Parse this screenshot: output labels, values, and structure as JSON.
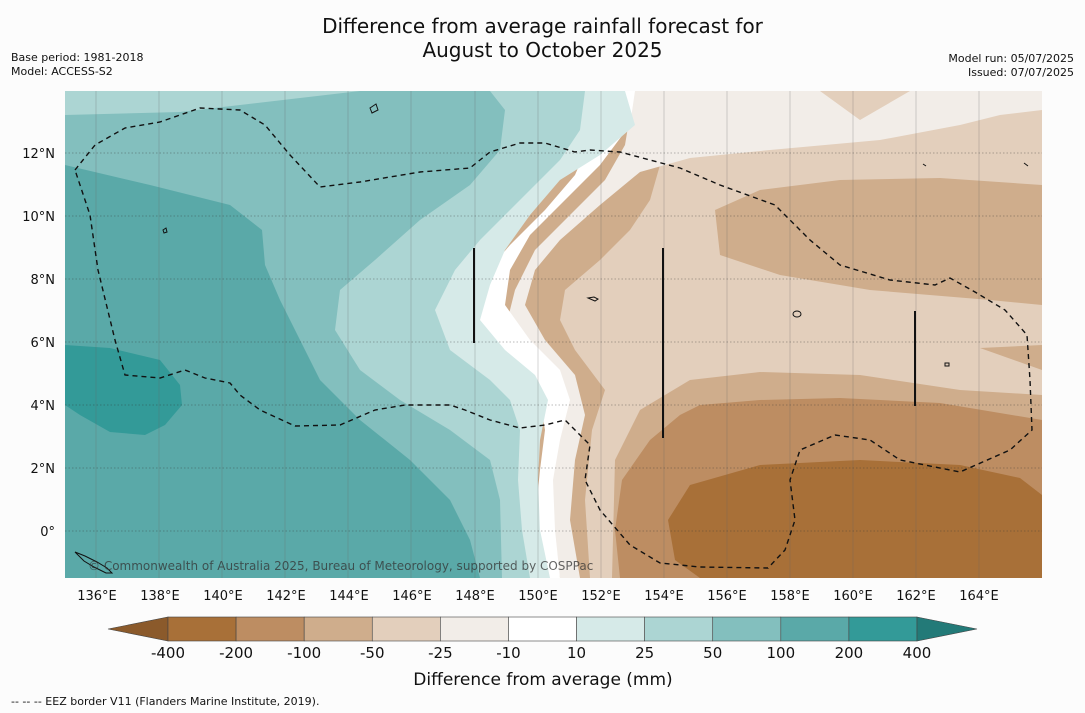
{
  "title_line1": "Difference from average rainfall forecast for",
  "title_line2": "August to October 2025",
  "base_period": "Base period: 1981-2018",
  "model": "Model: ACCESS-S2",
  "model_run": "Model run: 05/07/2025",
  "issued": "Issued: 07/07/2025",
  "credit": "© Commonwealth of Australia 2025, Bureau of Meteorology, supported by COSPPac",
  "footnote": "--  --  -- EEZ border V11 (Flanders Marine Institute, 2019).",
  "colorbar": {
    "label": "Difference from average (mm)",
    "ticks": [
      "-400",
      "-200",
      "-100",
      "-50",
      "-25",
      "-10",
      "10",
      "25",
      "50",
      "100",
      "200",
      "400"
    ],
    "colors": [
      "#a87038",
      "#bd8d62",
      "#cfad8c",
      "#e3cfbc",
      "#f2ede8",
      "#ffffff",
      "#d6eae8",
      "#acd5d3",
      "#83bfbe",
      "#5aa9a8",
      "#339a98"
    ],
    "extend_low_color": "#8b5a2b",
    "extend_high_color": "#237a78"
  },
  "axes": {
    "lon_labels": [
      "136°E",
      "138°E",
      "140°E",
      "142°E",
      "144°E",
      "146°E",
      "148°E",
      "150°E",
      "152°E",
      "154°E",
      "156°E",
      "158°E",
      "160°E",
      "162°E",
      "164°E"
    ],
    "lat_labels": [
      "12°N",
      "10°N",
      "8°N",
      "6°N",
      "4°N",
      "2°N",
      "0°"
    ],
    "lon_range": [
      135,
      166
    ],
    "lat_range": [
      -1.5,
      14
    ]
  },
  "map_colors": {
    "strong_wet": "#339a98",
    "wet": "#5aa9a8",
    "moderate_wet": "#83bfbe",
    "light_wet": "#acd5d3",
    "slight_wet": "#d6eae8",
    "neutral": "#ffffff",
    "slight_dry": "#f2ede8",
    "light_dry": "#e3cfbc",
    "moderate_dry": "#cfad8c",
    "dry": "#bd8d62",
    "strong_dry": "#a87038"
  }
}
